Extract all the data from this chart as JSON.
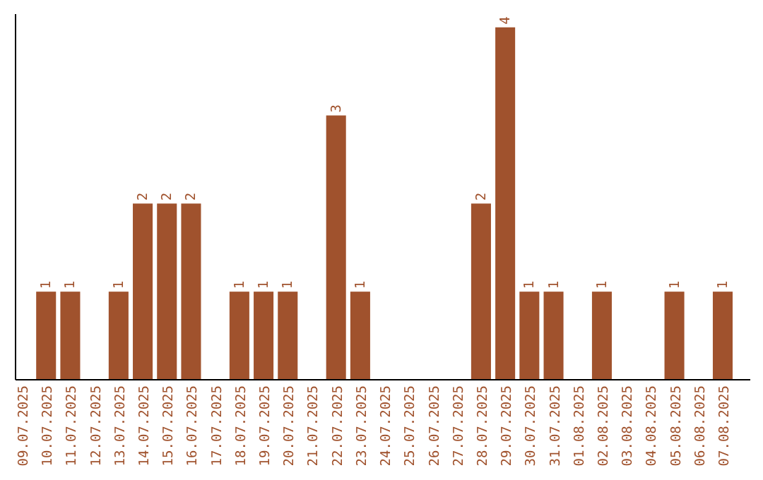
{
  "chart_data": {
    "type": "bar",
    "categories": [
      "09.07.2025",
      "10.07.2025",
      "11.07.2025",
      "12.07.2025",
      "13.07.2025",
      "14.07.2025",
      "15.07.2025",
      "16.07.2025",
      "17.07.2025",
      "18.07.2025",
      "19.07.2025",
      "20.07.2025",
      "21.07.2025",
      "22.07.2025",
      "23.07.2025",
      "24.07.2025",
      "25.07.2025",
      "26.07.2025",
      "27.07.2025",
      "28.07.2025",
      "29.07.2025",
      "30.07.2025",
      "31.07.2025",
      "01.08.2025",
      "02.08.2025",
      "03.08.2025",
      "04.08.2025",
      "05.08.2025",
      "06.08.2025",
      "07.08.2025"
    ],
    "values": [
      0,
      1,
      1,
      0,
      1,
      2,
      2,
      2,
      0,
      1,
      1,
      1,
      0,
      3,
      1,
      0,
      0,
      0,
      0,
      2,
      4,
      1,
      1,
      0,
      1,
      0,
      0,
      1,
      0,
      1
    ],
    "value_labels": [
      null,
      "1",
      "1",
      null,
      "1",
      "2",
      "2",
      "2",
      null,
      "1",
      "1",
      "1",
      null,
      "3",
      "1",
      null,
      null,
      null,
      null,
      "2",
      "4",
      "1",
      "1",
      null,
      "1",
      null,
      null,
      "1",
      null,
      "1"
    ],
    "color": "#a0522d",
    "ylim": [
      0,
      4.15
    ],
    "tick_labels": "x"
  }
}
